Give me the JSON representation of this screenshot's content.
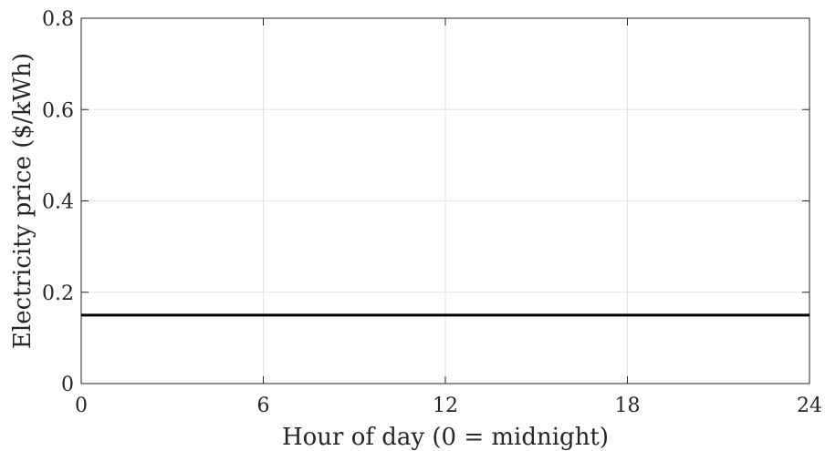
{
  "chart_data": {
    "type": "line",
    "title": "",
    "xlabel": "Hour of day (0 = midnight)",
    "ylabel": "Electricity price ($/kWh)",
    "xlim": [
      0,
      24
    ],
    "ylim": [
      0,
      0.8
    ],
    "xticks": [
      0,
      6,
      12,
      18,
      24
    ],
    "xtick_labels": [
      "0",
      "6",
      "12",
      "18",
      "24"
    ],
    "yticks": [
      0,
      0.2,
      0.4,
      0.6,
      0.8
    ],
    "ytick_labels": [
      "0",
      "0.2",
      "0.4",
      "0.6",
      "0.8"
    ],
    "grid": true,
    "series": [
      {
        "x": [
          0,
          24
        ],
        "y": [
          0.15,
          0.15
        ],
        "color": "#000000"
      }
    ]
  }
}
